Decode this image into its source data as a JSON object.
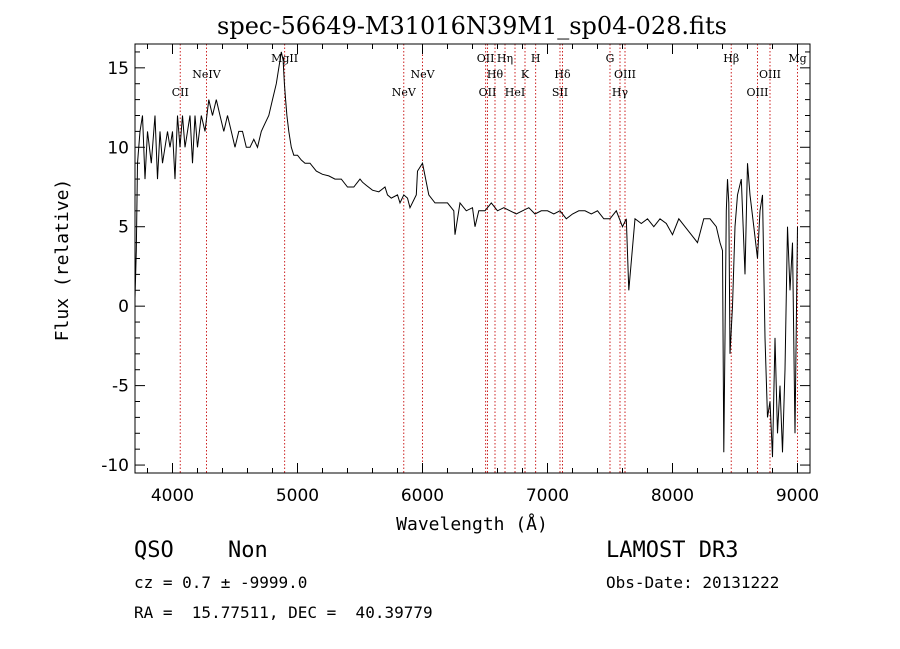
{
  "chart_data": {
    "type": "line",
    "title": "spec-56649-M31016N39M1_sp04-028.fits",
    "xlabel": "Wavelength (Å)",
    "ylabel": "Flux (relative)",
    "xlim": [
      3700,
      9100
    ],
    "ylim": [
      -10.5,
      16.5
    ],
    "xticks": [
      4000,
      5000,
      6000,
      7000,
      8000,
      9000
    ],
    "yticks": [
      -10,
      -5,
      0,
      5,
      10,
      15
    ],
    "grid": false,
    "series": [
      {
        "x": [
          3700,
          3710,
          3720,
          3740,
          3760,
          3780,
          3800,
          3830,
          3860,
          3880,
          3900,
          3920,
          3940,
          3960,
          3980,
          4000,
          4020,
          4040,
          4060,
          4080,
          4100,
          4120,
          4140,
          4160,
          4180,
          4200,
          4230,
          4260,
          4290,
          4320,
          4350,
          4380,
          4410,
          4440,
          4470,
          4500,
          4530,
          4560,
          4590,
          4620,
          4650,
          4680,
          4710,
          4740,
          4770,
          4800,
          4830,
          4850,
          4870,
          4885,
          4895,
          4905,
          4915,
          4930,
          4950,
          4970,
          5000,
          5030,
          5060,
          5100,
          5150,
          5200,
          5250,
          5300,
          5350,
          5400,
          5450,
          5500,
          5520,
          5550,
          5600,
          5650,
          5700,
          5720,
          5750,
          5800,
          5820,
          5850,
          5880,
          5900,
          5950,
          5960,
          6000,
          6050,
          6100,
          6150,
          6200,
          6250,
          6260,
          6300,
          6350,
          6400,
          6420,
          6450,
          6500,
          6550,
          6600,
          6650,
          6700,
          6750,
          6800,
          6850,
          6900,
          6950,
          7000,
          7050,
          7100,
          7150,
          7200,
          7250,
          7300,
          7350,
          7400,
          7450,
          7500,
          7550,
          7600,
          7630,
          7650,
          7700,
          7750,
          7800,
          7850,
          7900,
          7950,
          8000,
          8050,
          8100,
          8150,
          8200,
          8250,
          8300,
          8350,
          8380,
          8400,
          8410,
          8420,
          8430,
          8440,
          8450,
          8460,
          8480,
          8500,
          8520,
          8550,
          8580,
          8600,
          8620,
          8650,
          8680,
          8700,
          8720,
          8740,
          8760,
          8780,
          8800,
          8820,
          8840,
          8860,
          8880,
          8900,
          8920,
          8940,
          8960,
          8980,
          9000
        ],
        "y": [
          0.5,
          3.5,
          9,
          11,
          12,
          8,
          11,
          9,
          12,
          8,
          11,
          9,
          10,
          11,
          10,
          11,
          8,
          12,
          10,
          12,
          10,
          11,
          12,
          9,
          12,
          10,
          12,
          11,
          13,
          12,
          13,
          12,
          11,
          12,
          11,
          10,
          11,
          11,
          10,
          10,
          10.5,
          10,
          11,
          11.5,
          12,
          13,
          14,
          15,
          16,
          15.5,
          14,
          13,
          12,
          11,
          10,
          9.5,
          9.5,
          9.2,
          9,
          9,
          8.5,
          8.3,
          8.2,
          8,
          8,
          7.5,
          7.5,
          8,
          7.8,
          7.6,
          7.3,
          7.2,
          7.5,
          7,
          6.8,
          7,
          6.5,
          7,
          6.8,
          6.2,
          7,
          8.5,
          9,
          7,
          6.5,
          6.5,
          6.5,
          6,
          4.5,
          6.5,
          6,
          6.2,
          5,
          6,
          6,
          6.5,
          6,
          6.2,
          6,
          5.8,
          6,
          6.2,
          5.8,
          6,
          6,
          5.8,
          6,
          5.5,
          5.8,
          6,
          6,
          5.8,
          6,
          5.5,
          5.5,
          6,
          5,
          5.5,
          1,
          5.5,
          5.2,
          5.5,
          5,
          5.5,
          5.2,
          4.5,
          5.5,
          5,
          4.5,
          4,
          5.5,
          5.5,
          5,
          4,
          3.5,
          -9.2,
          -2,
          6,
          8,
          6.5,
          -3,
          0,
          5,
          7,
          8,
          2,
          9,
          7,
          5,
          3,
          6,
          7,
          -2,
          -7,
          -6,
          -9.5,
          -2,
          -8,
          -5,
          -9.2,
          -4,
          5,
          1,
          4,
          -8,
          5
        ]
      }
    ],
    "lines": [
      {
        "label": "CII",
        "x": 4062,
        "row": 3
      },
      {
        "label": "NeIV",
        "x": 4272,
        "row": 2
      },
      {
        "label": "MgII",
        "x": 4897,
        "row": 1
      },
      {
        "label": "NeV",
        "x": 5850,
        "row": 3
      },
      {
        "label": "NeV",
        "x": 6000,
        "row": 2
      },
      {
        "label": "OII",
        "x": 6505,
        "row": 1
      },
      {
        "label": "OII",
        "x": 6520,
        "row": 3
      },
      {
        "label": "Hη",
        "x": 6660,
        "row": 1
      },
      {
        "label": "Hθ",
        "x": 6580,
        "row": 2
      },
      {
        "label": "HeI",
        "x": 6740,
        "row": 3
      },
      {
        "label": "K",
        "x": 6820,
        "row": 2
      },
      {
        "label": "H",
        "x": 6905,
        "row": 1
      },
      {
        "label": "Hδ",
        "x": 7120,
        "row": 2
      },
      {
        "label": "SII",
        "x": 7100,
        "row": 3
      },
      {
        "label": "G",
        "x": 7500,
        "row": 1
      },
      {
        "label": "OIII",
        "x": 7620,
        "row": 2
      },
      {
        "label": "Hγ",
        "x": 7580,
        "row": 3
      },
      {
        "label": "Hβ",
        "x": 8470,
        "row": 1
      },
      {
        "label": "OIII",
        "x": 8780,
        "row": 2
      },
      {
        "label": "OIII",
        "x": 8680,
        "row": 3
      },
      {
        "label": "Mg",
        "x": 9000,
        "row": 1
      }
    ]
  },
  "info": {
    "class": "QSO",
    "subclass": "Non",
    "cz": "cz = 0.7 ± -9999.0",
    "coords": "RA =  15.77511, DEC =  40.39779",
    "survey": "LAMOST DR3",
    "obs_date": "Obs-Date: 20131222"
  },
  "colors": {
    "spectrum": "#000000",
    "line_markers": "#cc2222",
    "axes": "#000000"
  }
}
